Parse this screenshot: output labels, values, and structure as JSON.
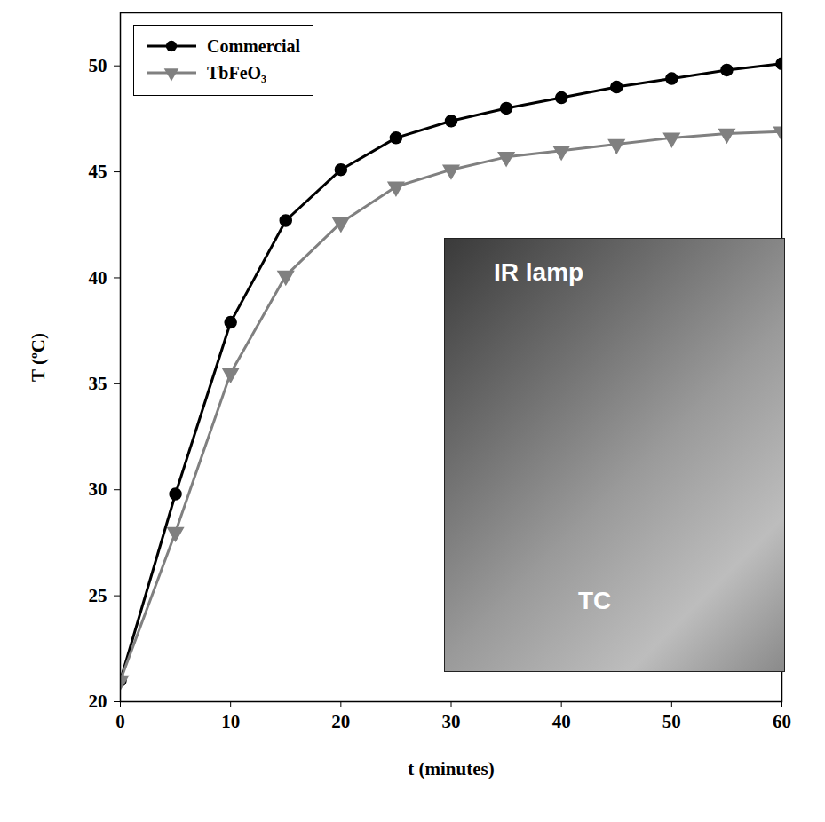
{
  "chart_data": {
    "type": "line",
    "x_label": "t (minutes)",
    "y_label": "T (ºC)",
    "x": [
      0,
      5,
      10,
      15,
      20,
      25,
      30,
      35,
      40,
      45,
      50,
      55,
      60
    ],
    "series": [
      {
        "name": "Commercial",
        "color": "#000000",
        "marker": "circle",
        "line_style": "solid",
        "values": [
          21,
          29.8,
          37.9,
          42.7,
          45.1,
          46.6,
          47.4,
          48.0,
          48.5,
          49.0,
          49.4,
          49.8,
          50.1
        ]
      },
      {
        "name": "TbFeO₃",
        "color": "#808080",
        "marker": "triangle-down",
        "line_style": "solid",
        "values": [
          21,
          28.0,
          35.5,
          40.1,
          42.6,
          44.3,
          45.1,
          45.7,
          46.0,
          46.3,
          46.6,
          46.8,
          46.9
        ]
      }
    ],
    "xlim": [
      0,
      60
    ],
    "xticks": [
      0,
      10,
      20,
      30,
      40,
      50,
      60
    ],
    "ylim": [
      20,
      52.5
    ],
    "yticks": [
      20,
      25,
      30,
      35,
      40,
      45,
      50
    ],
    "grid": false,
    "legend": "top-left",
    "annotations": [
      "IR lamp",
      "TC"
    ]
  }
}
